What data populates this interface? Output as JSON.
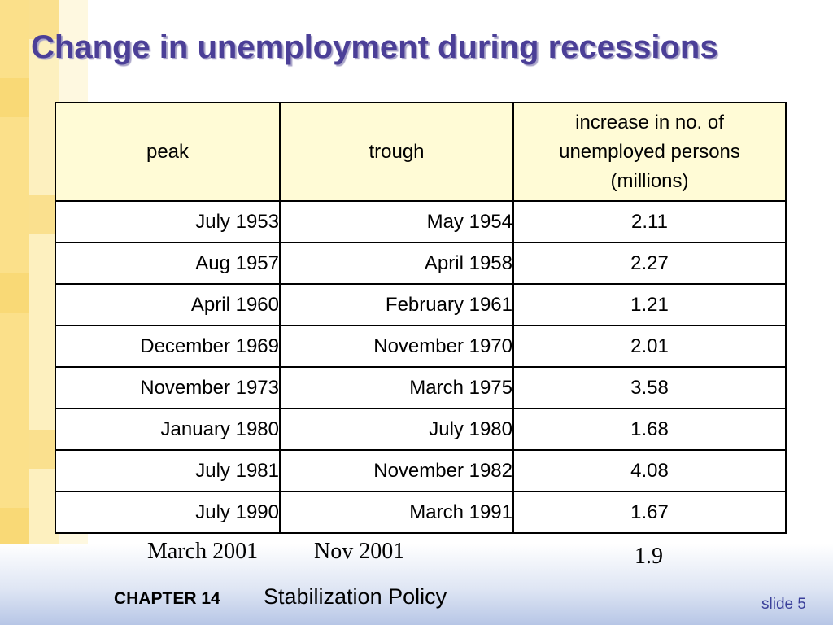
{
  "slide": {
    "title": "Change in unemployment during recessions",
    "table": {
      "headers": {
        "peak": "peak",
        "trough": "trough",
        "increase": "increase in no. of unemployed persons (millions)"
      },
      "rows": [
        {
          "peak": "July 1953",
          "trough": "May 1954",
          "increase": "2.11"
        },
        {
          "peak": "Aug 1957",
          "trough": "April 1958",
          "increase": "2.27"
        },
        {
          "peak": "April 1960",
          "trough": "February 1961",
          "increase": "1.21"
        },
        {
          "peak": "December 1969",
          "trough": "November 1970",
          "increase": "2.01"
        },
        {
          "peak": "November 1973",
          "trough": "March 1975",
          "increase": "3.58"
        },
        {
          "peak": "January 1980",
          "trough": "July 1980",
          "increase": "1.68"
        },
        {
          "peak": "July 1981",
          "trough": "November 1982",
          "increase": "4.08"
        },
        {
          "peak": "July 1990",
          "trough": "March 1991",
          "increase": "1.67"
        }
      ]
    },
    "extra_row": {
      "peak": "March 2001",
      "trough": "Nov 2001",
      "increase": "1.9"
    },
    "footer": {
      "chapter": "CHAPTER 14",
      "subject": "Stabilization Policy",
      "slide_number": "slide 5"
    },
    "colors": {
      "title": "#4b3f97",
      "header_fill": "#fffbd6",
      "strip": "#fbe08a"
    }
  }
}
